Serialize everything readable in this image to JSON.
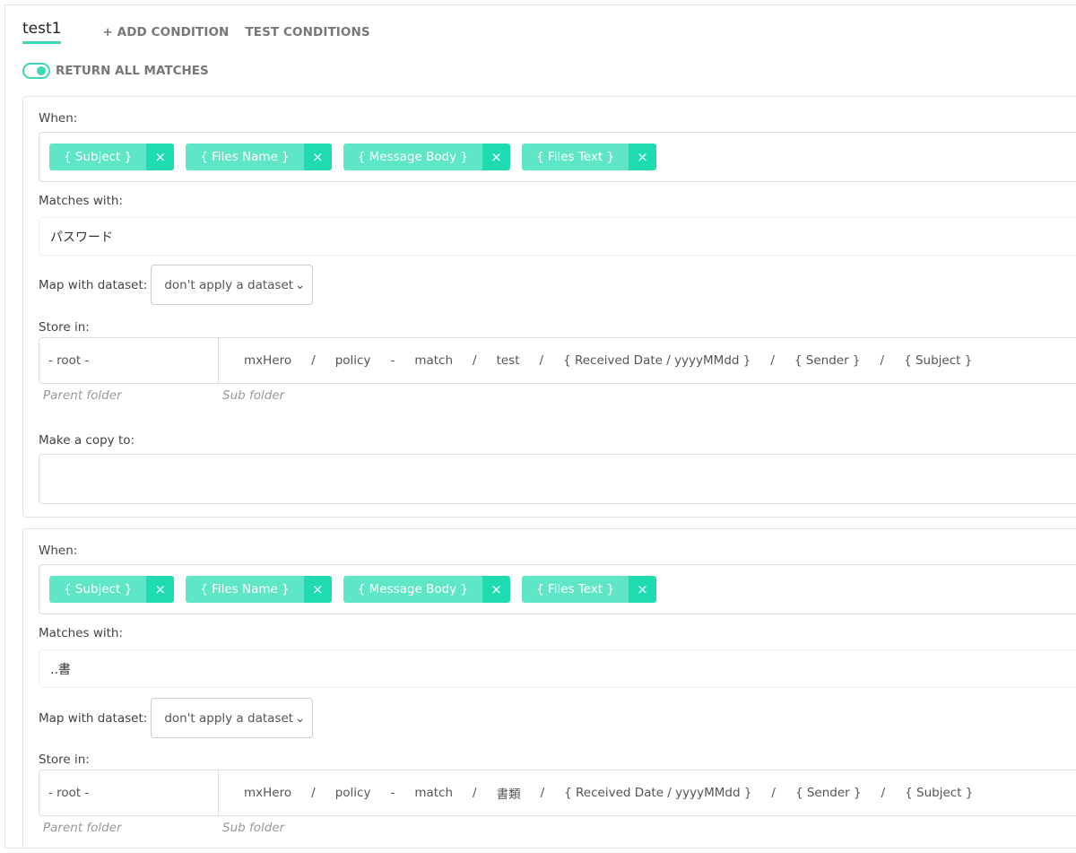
{
  "header": {
    "tab_active": "test1",
    "add_condition": "+ ADD CONDITION",
    "test_conditions": "TEST CONDITIONS",
    "return_all_matches": "RETURN ALL MATCHES",
    "return_all_matches_on": true
  },
  "colors": {
    "accent": "#3dd9b5",
    "chip": "#5ee6c7",
    "chip_remove": "#1edcb0"
  },
  "labels": {
    "when": "When:",
    "matches_with": "Matches with:",
    "map_with_dataset": "Map with dataset:",
    "store_in": "Store in:",
    "parent_folder": "Parent folder",
    "sub_folder": "Sub folder",
    "make_copy": "Make a copy to:",
    "remove": "×"
  },
  "conditions": [
    {
      "chips": [
        "{ Subject }",
        "{ Files Name }",
        "{ Message Body }",
        "{ Files Text }"
      ],
      "matches_with": "パスワード",
      "dataset": "don't apply a dataset",
      "parent": "- root -",
      "path": [
        "mxHero",
        "/",
        "policy",
        "-",
        "match",
        "/",
        "test",
        "/",
        "{ Received Date / yyyyMMdd }",
        "/",
        "{ Sender }",
        "/",
        "{ Subject }"
      ],
      "copy_to": ""
    },
    {
      "chips": [
        "{ Subject }",
        "{ Files Name }",
        "{ Message Body }",
        "{ Files Text }"
      ],
      "matches_with": "..書",
      "dataset": "don't apply a dataset",
      "parent": "- root -",
      "path": [
        "mxHero",
        "/",
        "policy",
        "-",
        "match",
        "/",
        "書類",
        "/",
        "{ Received Date / yyyyMMdd }",
        "/",
        "{ Sender }",
        "/",
        "{ Subject }"
      ]
    }
  ]
}
